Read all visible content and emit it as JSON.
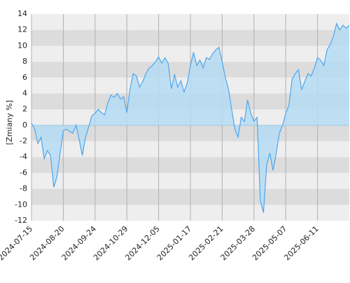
{
  "chart_data": {
    "type": "area",
    "y_label": "[Zmiany %]",
    "categories": [
      "2024-07-15",
      null,
      null,
      null,
      null,
      null,
      null,
      null,
      null,
      null,
      "2024-08-20",
      null,
      null,
      null,
      null,
      null,
      null,
      null,
      null,
      null,
      "2024-09-24",
      null,
      null,
      null,
      null,
      null,
      null,
      null,
      null,
      null,
      "2024-10-29",
      null,
      null,
      null,
      null,
      null,
      null,
      null,
      null,
      null,
      "2024-12-05",
      null,
      null,
      null,
      null,
      null,
      null,
      null,
      null,
      null,
      "2025-01-17",
      null,
      null,
      null,
      null,
      null,
      null,
      null,
      null,
      null,
      "2025-02-21",
      null,
      null,
      null,
      null,
      null,
      null,
      null,
      null,
      null,
      "2025-03-28",
      null,
      null,
      null,
      null,
      null,
      null,
      null,
      null,
      null,
      "2025-05-07",
      null,
      null,
      null,
      null,
      null,
      null,
      null,
      null,
      null,
      "2025-06-11",
      null,
      null,
      null,
      null,
      null,
      null,
      null,
      null,
      null,
      null
    ],
    "series": [
      {
        "name": "Zmiany",
        "color": "#4ea6ee",
        "fill": "#b5dcf3",
        "values": [
          0.3,
          -0.5,
          -2.3,
          -1.5,
          -4.2,
          -3.2,
          -3.8,
          -7.8,
          -6.5,
          -3.5,
          -0.7,
          -0.5,
          -0.8,
          -1,
          0,
          -1.8,
          -3.8,
          -1.5,
          -0.2,
          1.2,
          1.5,
          2,
          1.6,
          1.3,
          2.8,
          3.8,
          3.5,
          4,
          3.3,
          3.6,
          1.6,
          4.5,
          6.5,
          6.2,
          4.8,
          5.5,
          6.5,
          7.2,
          7.5,
          8,
          8.6,
          7.8,
          8.5,
          7.8,
          4.6,
          6.4,
          4.8,
          5.6,
          4.2,
          5.3,
          7.5,
          9.2,
          7.5,
          8.2,
          7.2,
          8.5,
          8.3,
          9,
          9.5,
          9.8,
          8,
          6,
          4.5,
          2,
          -0.5,
          -1.5,
          1,
          0.5,
          3.2,
          1.5,
          0.5,
          1,
          -9.5,
          -11,
          -5,
          -3.5,
          -5.7,
          -3.5,
          -1,
          0,
          1.5,
          2.5,
          5.8,
          6.5,
          7,
          4.5,
          5.5,
          6.5,
          6.2,
          7.2,
          8.5,
          8.2,
          7.5,
          9.5,
          10.2,
          11.2,
          12.8,
          12,
          12.6,
          12.2,
          12.6
        ]
      }
    ],
    "ylim": [
      -12,
      14
    ],
    "yticks": [
      -12,
      -10,
      -8,
      -6,
      -4,
      -2,
      0,
      2,
      4,
      6,
      8,
      10,
      12,
      14
    ],
    "grid": true
  }
}
